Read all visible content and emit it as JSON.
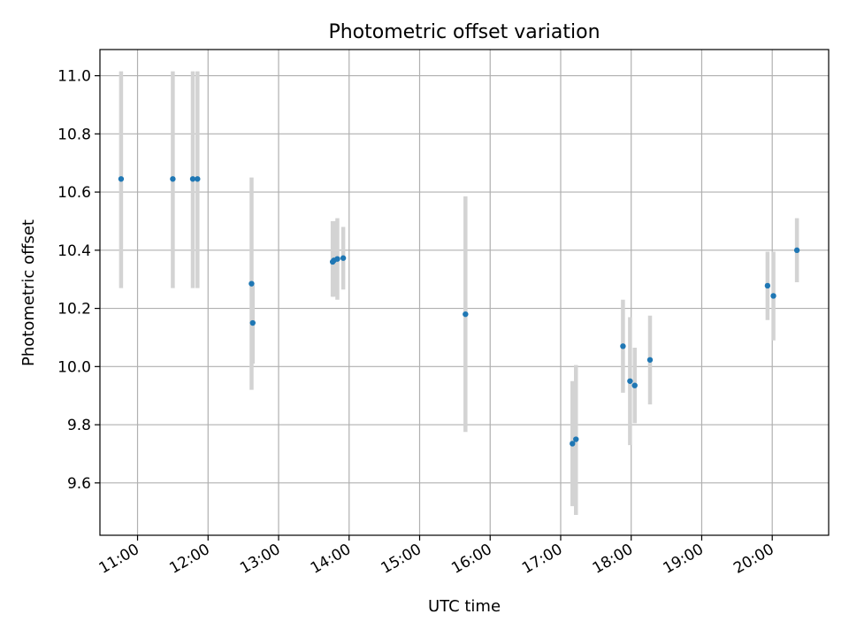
{
  "chart_data": {
    "type": "scatter",
    "title": "Photometric offset variation",
    "xlabel": "UTC time",
    "ylabel": "Photometric offset",
    "x_unit": "HH:MM (UTC)",
    "xlim": [
      "10:28",
      "20:48"
    ],
    "ylim": [
      9.42,
      11.09
    ],
    "grid": true,
    "colors": {
      "point": "#1f77b4",
      "errorbar": "#d3d3d3",
      "grid": "#b0b0b0"
    },
    "x_ticks": [
      "11:00",
      "12:00",
      "13:00",
      "14:00",
      "15:00",
      "16:00",
      "17:00",
      "18:00",
      "19:00",
      "20:00"
    ],
    "y_ticks": [
      "9.6",
      "9.8",
      "10.0",
      "10.2",
      "10.4",
      "10.6",
      "10.8",
      "11.0"
    ],
    "points": [
      {
        "x": "10:46",
        "y": 10.645,
        "ylow": 10.27,
        "yhigh": 11.015
      },
      {
        "x": "11:30",
        "y": 10.645,
        "ylow": 10.27,
        "yhigh": 11.015
      },
      {
        "x": "11:47",
        "y": 10.645,
        "ylow": 10.27,
        "yhigh": 11.015
      },
      {
        "x": "11:51",
        "y": 10.645,
        "ylow": 10.27,
        "yhigh": 11.015
      },
      {
        "x": "12:37",
        "y": 10.285,
        "ylow": 9.92,
        "yhigh": 10.65
      },
      {
        "x": "12:38",
        "y": 10.15,
        "ylow": 10.01,
        "yhigh": 10.28
      },
      {
        "x": "13:46",
        "y": 10.36,
        "ylow": 10.24,
        "yhigh": 10.5
      },
      {
        "x": "13:47",
        "y": 10.365,
        "ylow": 10.24,
        "yhigh": 10.5
      },
      {
        "x": "13:50",
        "y": 10.37,
        "ylow": 10.23,
        "yhigh": 10.51
      },
      {
        "x": "13:55",
        "y": 10.373,
        "ylow": 10.265,
        "yhigh": 10.48
      },
      {
        "x": "15:39",
        "y": 10.18,
        "ylow": 9.775,
        "yhigh": 10.585
      },
      {
        "x": "17:10",
        "y": 9.735,
        "ylow": 9.52,
        "yhigh": 9.95
      },
      {
        "x": "17:13",
        "y": 9.75,
        "ylow": 9.49,
        "yhigh": 10.005
      },
      {
        "x": "17:53",
        "y": 10.07,
        "ylow": 9.91,
        "yhigh": 10.23
      },
      {
        "x": "17:59",
        "y": 9.95,
        "ylow": 9.73,
        "yhigh": 10.17
      },
      {
        "x": "18:03",
        "y": 9.935,
        "ylow": 9.805,
        "yhigh": 10.065
      },
      {
        "x": "18:16",
        "y": 10.023,
        "ylow": 9.87,
        "yhigh": 10.175
      },
      {
        "x": "19:56",
        "y": 10.278,
        "ylow": 10.16,
        "yhigh": 10.395
      },
      {
        "x": "20:01",
        "y": 10.243,
        "ylow": 10.09,
        "yhigh": 10.395
      },
      {
        "x": "20:21",
        "y": 10.4,
        "ylow": 10.29,
        "yhigh": 10.51
      }
    ]
  }
}
